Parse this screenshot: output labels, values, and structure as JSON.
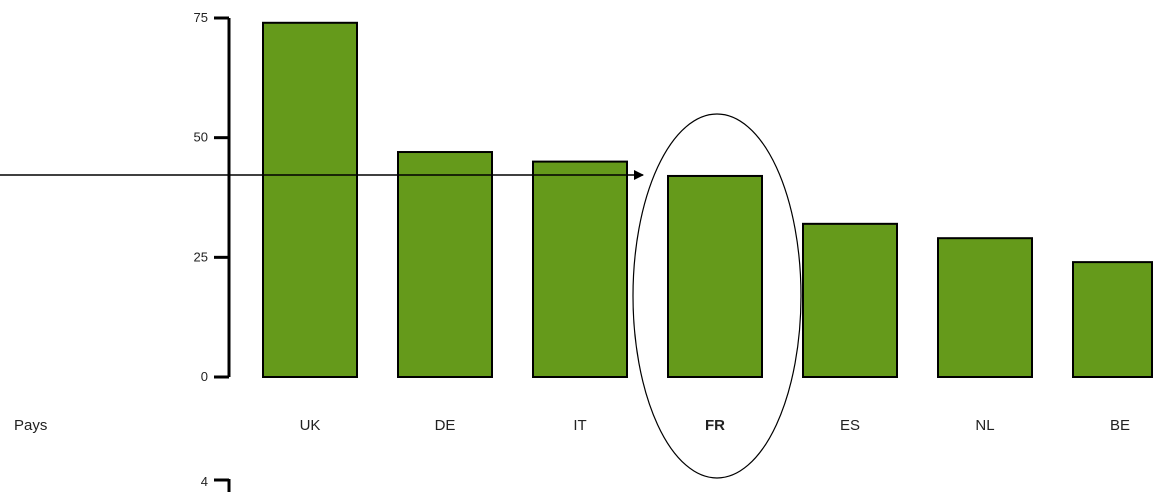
{
  "chart_data": {
    "type": "bar",
    "categories": [
      "UK",
      "DE",
      "IT",
      "FR",
      "ES",
      "NL",
      "BE"
    ],
    "values": [
      74,
      47,
      45,
      42,
      32,
      29,
      24
    ],
    "highlight": "FR",
    "xlabel": "Pays",
    "ylabel": "",
    "ylim": [
      0,
      75
    ],
    "yticks": [
      0,
      25,
      50,
      75
    ],
    "next_axis_tick": "4",
    "bar_color": "#659a1b",
    "bar_stroke": "#000000",
    "grid": false
  }
}
